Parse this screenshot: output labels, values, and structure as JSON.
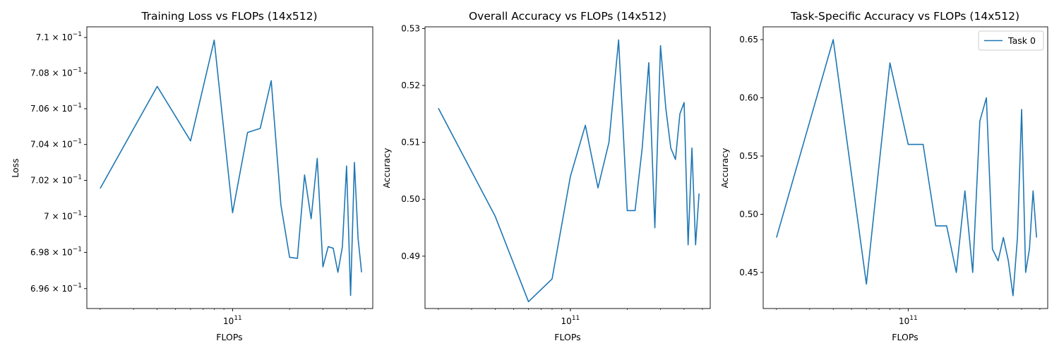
{
  "figure": {
    "charts": [
      {
        "id": "loss",
        "title": "Training Loss vs FLOPs (14x512)"
      },
      {
        "id": "overall",
        "title": "Overall Accuracy vs FLOPs (14x512)"
      },
      {
        "id": "task",
        "title": "Task-Specific Accuracy vs FLOPs (14x512)"
      }
    ]
  },
  "chart_data": [
    {
      "type": "line",
      "title": "Training Loss vs FLOPs (14x512)",
      "xlabel": "FLOPs",
      "ylabel": "Loss",
      "xscale": "log",
      "yscale": "log",
      "xlim": [
        17000000000.0,
        550000000000.0
      ],
      "ylim": [
        0.6949,
        0.7106
      ],
      "xticks": [
        {
          "value": 100000000000.0,
          "label": "10^11"
        }
      ],
      "yticks": [
        {
          "value": 0.696,
          "label": "6.96 × 10^-1"
        },
        {
          "value": 0.698,
          "label": "6.98 × 10^-1"
        },
        {
          "value": 0.7,
          "label": "7 × 10^-1"
        },
        {
          "value": 0.702,
          "label": "7.02 × 10^-1"
        },
        {
          "value": 0.704,
          "label": "7.04 × 10^-1"
        },
        {
          "value": 0.706,
          "label": "7.06 × 10^-1"
        },
        {
          "value": 0.708,
          "label": "7.08 × 10^-1"
        },
        {
          "value": 0.71,
          "label": "7.1 × 10^-1"
        }
      ],
      "color": "#1f77b4",
      "series": [
        {
          "x": [
            20000000000.0,
            40000000000.0,
            60000000000.0,
            80000000000.0,
            100000000000.0,
            120000000000.0,
            140000000000.0,
            160000000000.0,
            180000000000.0,
            200000000000.0,
            220000000000.0,
            240000000000.0,
            260000000000.0,
            280000000000.0,
            300000000000.0,
            320000000000.0,
            340000000000.0,
            360000000000.0,
            380000000000.0,
            400000000000.0,
            420000000000.0,
            440000000000.0,
            460000000000.0,
            480000000000.0
          ],
          "y": [
            0.70155,
            0.70725,
            0.7042,
            0.70985,
            0.7002,
            0.70467,
            0.7049,
            0.70757,
            0.70063,
            0.69773,
            0.69767,
            0.7023,
            0.69987,
            0.70322,
            0.6972,
            0.69832,
            0.69823,
            0.6969,
            0.6983,
            0.7028,
            0.69562,
            0.703,
            0.69878,
            0.6969
          ]
        }
      ]
    },
    {
      "type": "line",
      "title": "Overall Accuracy vs FLOPs (14x512)",
      "xlabel": "FLOPs",
      "ylabel": "Accuracy",
      "xscale": "log",
      "xlim": [
        17000000000.0,
        550000000000.0
      ],
      "ylim": [
        0.4808,
        0.5303
      ],
      "xticks": [
        {
          "value": 100000000000.0,
          "label": "10^11"
        }
      ],
      "yticks": [
        {
          "value": 0.48,
          "label": "0.48"
        },
        {
          "value": 0.49,
          "label": "0.49"
        },
        {
          "value": 0.5,
          "label": "0.50"
        },
        {
          "value": 0.51,
          "label": "0.51"
        },
        {
          "value": 0.52,
          "label": "0.52"
        },
        {
          "value": 0.53,
          "label": "0.53"
        }
      ],
      "color": "#1f77b4",
      "series": [
        {
          "x": [
            20000000000.0,
            40000000000.0,
            60000000000.0,
            80000000000.0,
            100000000000.0,
            120000000000.0,
            140000000000.0,
            160000000000.0,
            180000000000.0,
            200000000000.0,
            220000000000.0,
            240000000000.0,
            260000000000.0,
            280000000000.0,
            300000000000.0,
            320000000000.0,
            340000000000.0,
            360000000000.0,
            380000000000.0,
            400000000000.0,
            420000000000.0,
            440000000000.0,
            460000000000.0,
            480000000000.0
          ],
          "y": [
            0.516,
            0.497,
            0.482,
            0.486,
            0.504,
            0.513,
            0.502,
            0.51,
            0.528,
            0.498,
            0.498,
            0.509,
            0.524,
            0.495,
            0.527,
            0.516,
            0.509,
            0.507,
            0.515,
            0.517,
            0.492,
            0.509,
            0.492,
            0.501
          ]
        }
      ]
    },
    {
      "type": "line",
      "title": "Task-Specific Accuracy vs FLOPs (14x512)",
      "xlabel": "FLOPs",
      "ylabel": "Accuracy",
      "xscale": "log",
      "xlim": [
        17000000000.0,
        550000000000.0
      ],
      "ylim": [
        0.419,
        0.661
      ],
      "xticks": [
        {
          "value": 100000000000.0,
          "label": "10^11"
        }
      ],
      "yticks": [
        {
          "value": 0.45,
          "label": "0.45"
        },
        {
          "value": 0.5,
          "label": "0.50"
        },
        {
          "value": 0.55,
          "label": "0.55"
        },
        {
          "value": 0.6,
          "label": "0.60"
        },
        {
          "value": 0.65,
          "label": "0.65"
        }
      ],
      "legend": {
        "position": "upper right"
      },
      "color": "#1f77b4",
      "series": [
        {
          "name": "Task 0",
          "x": [
            20000000000.0,
            40000000000.0,
            60000000000.0,
            80000000000.0,
            100000000000.0,
            120000000000.0,
            140000000000.0,
            160000000000.0,
            180000000000.0,
            200000000000.0,
            220000000000.0,
            240000000000.0,
            260000000000.0,
            280000000000.0,
            300000000000.0,
            320000000000.0,
            340000000000.0,
            360000000000.0,
            380000000000.0,
            400000000000.0,
            420000000000.0,
            440000000000.0,
            460000000000.0,
            480000000000.0
          ],
          "y": [
            0.48,
            0.65,
            0.44,
            0.63,
            0.56,
            0.56,
            0.49,
            0.49,
            0.45,
            0.52,
            0.45,
            0.58,
            0.6,
            0.47,
            0.46,
            0.48,
            0.46,
            0.43,
            0.48,
            0.59,
            0.45,
            0.47,
            0.52,
            0.48
          ]
        }
      ]
    }
  ]
}
